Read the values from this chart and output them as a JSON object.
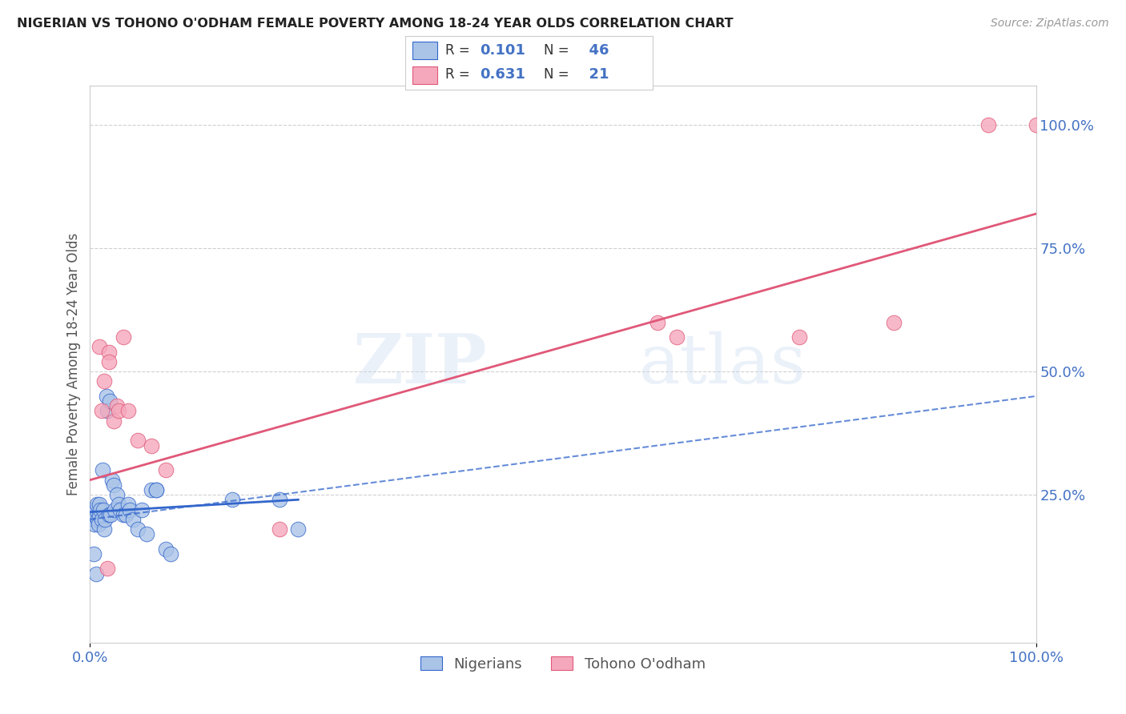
{
  "title": "NIGERIAN VS TOHONO O'ODHAM FEMALE POVERTY AMONG 18-24 YEAR OLDS CORRELATION CHART",
  "source": "Source: ZipAtlas.com",
  "ylabel": "Female Poverty Among 18-24 Year Olds",
  "xlim": [
    0,
    100
  ],
  "ylim": [
    -5,
    108
  ],
  "ytick_positions": [
    25,
    50,
    75,
    100
  ],
  "ytick_labels": [
    "25.0%",
    "50.0%",
    "75.0%",
    "100.0%"
  ],
  "nigerians_x": [
    0.2,
    0.3,
    0.4,
    0.5,
    0.5,
    0.6,
    0.7,
    0.8,
    0.9,
    1.0,
    1.0,
    1.1,
    1.2,
    1.3,
    1.4,
    1.5,
    1.6,
    1.7,
    1.8,
    2.0,
    2.1,
    2.2,
    2.3,
    2.5,
    2.6,
    2.8,
    3.0,
    3.2,
    3.5,
    3.8,
    4.0,
    4.2,
    4.5,
    5.0,
    5.5,
    6.0,
    6.5,
    7.0,
    7.0,
    8.0,
    8.5,
    15.0,
    20.0,
    22.0,
    0.4,
    0.6
  ],
  "nigerians_y": [
    21,
    22,
    20,
    19,
    21,
    22,
    23,
    20,
    19,
    21,
    23,
    22,
    20,
    30,
    22,
    18,
    20,
    45,
    42,
    21,
    44,
    21,
    28,
    27,
    22,
    25,
    23,
    22,
    21,
    21,
    23,
    22,
    20,
    18,
    22,
    17,
    26,
    26,
    26,
    14,
    13,
    24,
    24,
    18,
    13,
    9
  ],
  "tohono_x": [
    1.0,
    1.5,
    2.0,
    2.0,
    2.5,
    2.8,
    3.5,
    5.0,
    20.0,
    60.0,
    62.0,
    75.0,
    85.0,
    95.0,
    100.0,
    1.2,
    1.8,
    3.0,
    4.0,
    6.5,
    8.0
  ],
  "tohono_y": [
    55,
    48,
    54,
    52,
    40,
    43,
    57,
    36,
    18,
    60,
    57,
    57,
    60,
    100,
    100,
    42,
    10,
    42,
    42,
    35,
    30
  ],
  "nigerian_color": "#aac4e8",
  "tohono_color": "#f5a8bc",
  "nigerian_line_color": "#3366cc",
  "tohono_line_color": "#e05878",
  "nigerian_R": 0.101,
  "nigerian_N": 46,
  "tohono_R": 0.631,
  "tohono_N": 21,
  "legend_labels": [
    "Nigerians",
    "Tohono O'odham"
  ],
  "watermark_zip": "ZIP",
  "watermark_atlas": "atlas",
  "grid_color": "#d0d0d0",
  "background_color": "#ffffff",
  "title_color": "#222222",
  "axis_label_color": "#555555",
  "tick_label_color": "#4472c4",
  "legend_R_N_color": "#4472c4",
  "nigerian_solid_line": {
    "x0": 0,
    "x1": 22,
    "y0": 21.5,
    "y1": 24.0
  },
  "dashed_line": {
    "x0": 0,
    "x1": 100,
    "y0": 20,
    "y1": 45
  },
  "pink_line": {
    "x0": 0,
    "x1": 100,
    "y0": 28,
    "y1": 82
  }
}
